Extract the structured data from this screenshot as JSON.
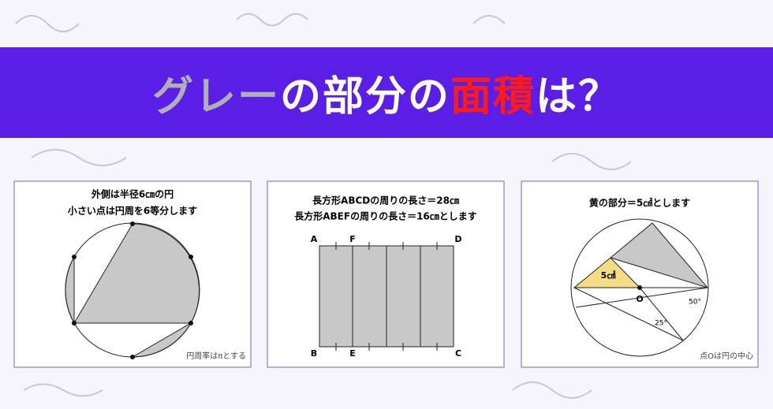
{
  "banner": {
    "parts": [
      "グレー",
      "の部分の",
      "面積",
      "は？"
    ]
  },
  "panels": [
    {
      "lines": [
        "外側は半径6㎝の円",
        "小さい点は円周を6等分します"
      ],
      "note": "円周率はπとする"
    },
    {
      "lines": [
        "長方形ABCDの周りの長さ＝28㎝",
        "長方形ABEFの周りの長さ＝16㎝とします"
      ],
      "labels": [
        "A",
        "F",
        "D",
        "B",
        "E",
        "C"
      ]
    },
    {
      "lines": [
        "黄の部分＝5㎠とします"
      ],
      "labels": [
        "5㎠",
        "O",
        "50°",
        "25°"
      ],
      "note": "点Oは円の中心"
    }
  ]
}
